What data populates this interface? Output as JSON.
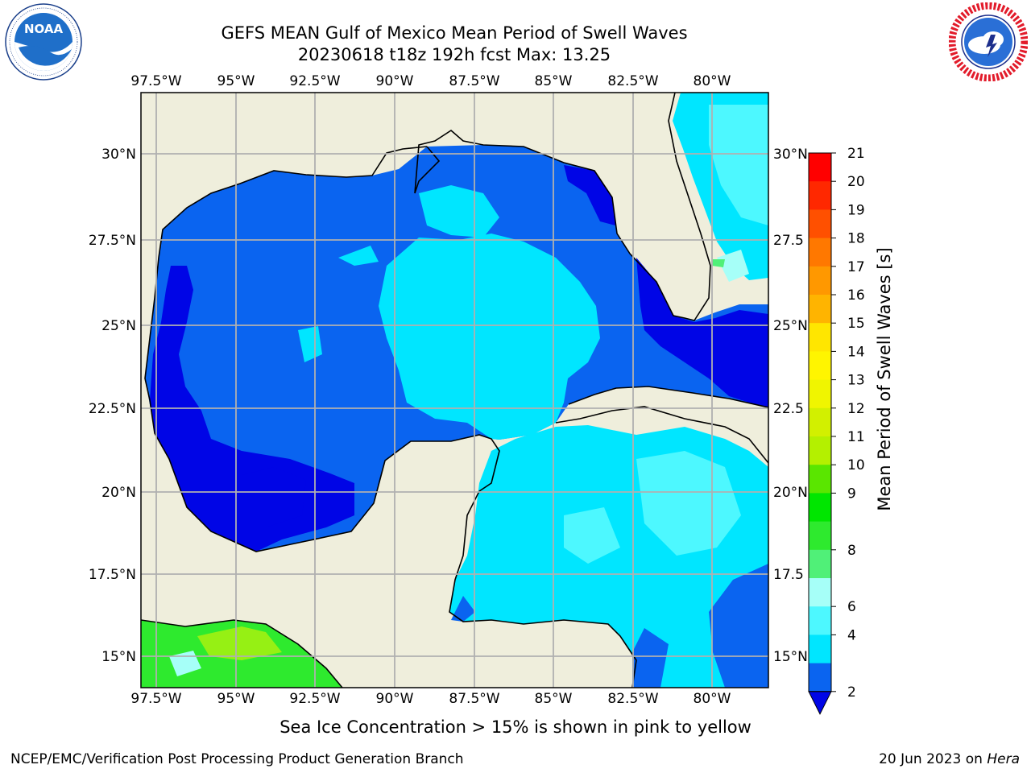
{
  "header": {
    "title_line1": "GEFS MEAN Gulf of Mexico Mean Period of Swell Waves",
    "title_line2": "20230618 t18z 192h fcst   Max: 13.25"
  },
  "logos": {
    "left": "NOAA",
    "left_ring": "NATIONAL OCEANIC AND ATMOSPHERIC ADMINISTRATION · U.S. DEPARTMENT OF COMMERCE",
    "right_ring": "NATIONAL WEATHER SERVICE"
  },
  "map": {
    "lon_labels": [
      "97.5°W",
      "95°W",
      "92.5°W",
      "90°W",
      "87.5°W",
      "85°W",
      "82.5°W",
      "80°W"
    ],
    "lat_labels_left": [
      "30°N",
      "27.5°N",
      "25°N",
      "22.5°N",
      "20°N",
      "17.5°N",
      "15°N"
    ],
    "lat_labels_right": [
      "30°N",
      "27.5",
      "25°N",
      "22.5",
      "20°N",
      "17.5",
      "15°N"
    ],
    "colors": {
      "land": "#efeedc",
      "sea_2_4": "#0a64f0",
      "sea_below_2": "#0005e6",
      "sea_4_6": "#00e6ff",
      "sea_6_8": "#4df8ff",
      "sea_8_9": "#a6fff8",
      "sea_10_11": "#2eea2e",
      "sea_12_13": "#96f014"
    }
  },
  "colorbar": {
    "label": "Mean Period of Swell Waves [s]",
    "ticks": [
      "21",
      "20",
      "19",
      "18",
      "17",
      "16",
      "15",
      "14",
      "13",
      "12",
      "11",
      "10",
      "9",
      "8",
      "6",
      "4",
      "2"
    ],
    "colors_top_to_bottom": [
      "#ff0000",
      "#ff2800",
      "#ff5000",
      "#ff7800",
      "#ff9800",
      "#ffb400",
      "#ffe600",
      "#fff500",
      "#f0f500",
      "#d2f000",
      "#b4f000",
      "#5ae600",
      "#00e600",
      "#2eea2e",
      "#50f078",
      "#a6fff8",
      "#4df8ff",
      "#00e6ff",
      "#0a64f0"
    ],
    "extend_color": "#0005e6"
  },
  "footer": {
    "note": "Sea Ice Concentration > 15% is shown in pink to yellow",
    "left": "NCEP/EMC/Verification Post Processing Product Generation Branch",
    "right_date": "20 Jun 2023 on ",
    "right_host": "Hera"
  }
}
